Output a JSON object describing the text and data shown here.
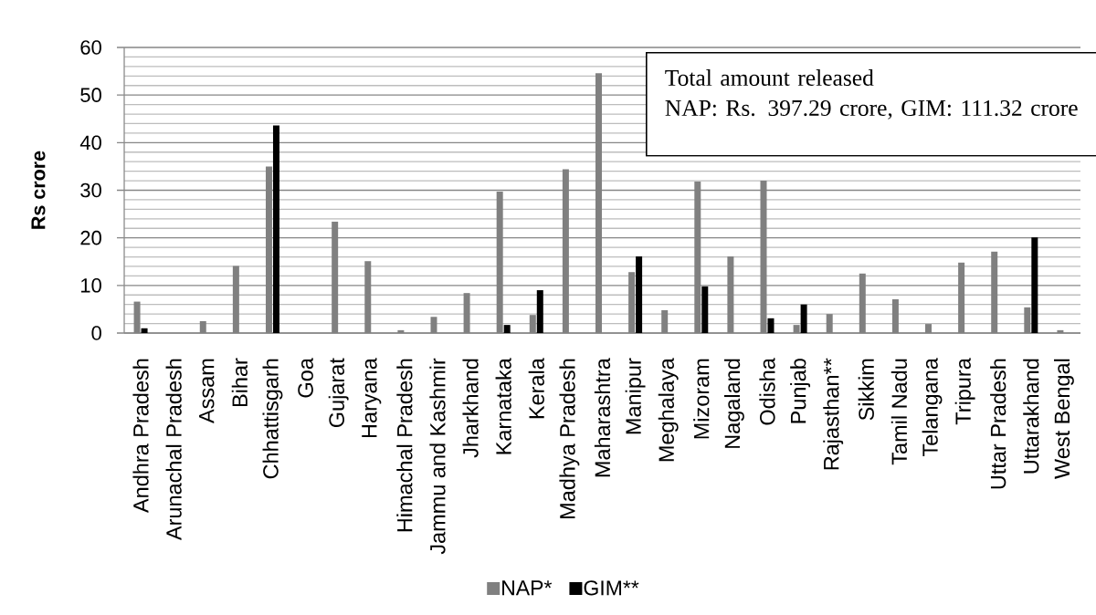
{
  "chart_data": {
    "type": "bar",
    "categories": [
      "Andhra Pradesh",
      "Arunachal Pradesh",
      "Assam",
      "Bihar",
      "Chhattisgarh",
      "Goa",
      "Gujarat",
      "Haryana",
      "Himachal Pradesh",
      "Jammu and Kashmir",
      "Jharkhand",
      "Karnataka",
      "Kerala",
      "Madhya Pradesh",
      "Maharashtra",
      "Manipur",
      "Meghalaya",
      "Mizoram",
      "Nagaland",
      "Odisha",
      "Punjab",
      "Rajasthan**",
      "Sikkim",
      "Tamil Nadu",
      "Telangana",
      "Tripura",
      "Uttar Pradesh",
      "Uttarakhand",
      "West Bengal"
    ],
    "series": [
      {
        "name": "NAP*",
        "color": "#808080",
        "values": [
          6.6,
          null,
          2.5,
          14.1,
          35.0,
          null,
          23.4,
          15.1,
          0.6,
          3.4,
          8.4,
          29.7,
          3.8,
          34.4,
          54.6,
          12.8,
          4.8,
          31.8,
          16.1,
          32.0,
          1.7,
          4.0,
          12.5,
          7.1,
          1.9,
          14.8,
          17.1,
          5.4,
          0.6
        ]
      },
      {
        "name": "GIM**",
        "color": "#000000",
        "values": [
          1.0,
          null,
          null,
          null,
          43.6,
          null,
          null,
          null,
          null,
          null,
          null,
          1.7,
          9.0,
          null,
          null,
          16.1,
          null,
          9.8,
          null,
          3.1,
          6.0,
          null,
          null,
          null,
          null,
          null,
          null,
          20.1,
          null
        ]
      }
    ],
    "ylabel": "Rs crore",
    "ylim": [
      0,
      60
    ],
    "yticks": [
      0,
      10,
      20,
      30,
      40,
      50,
      60
    ],
    "grid": "y",
    "legend": "bottom",
    "annotations": [
      "Total amount released",
      "NAP: Rs. 397.29 crore, GIM: 111.32 crore"
    ]
  }
}
